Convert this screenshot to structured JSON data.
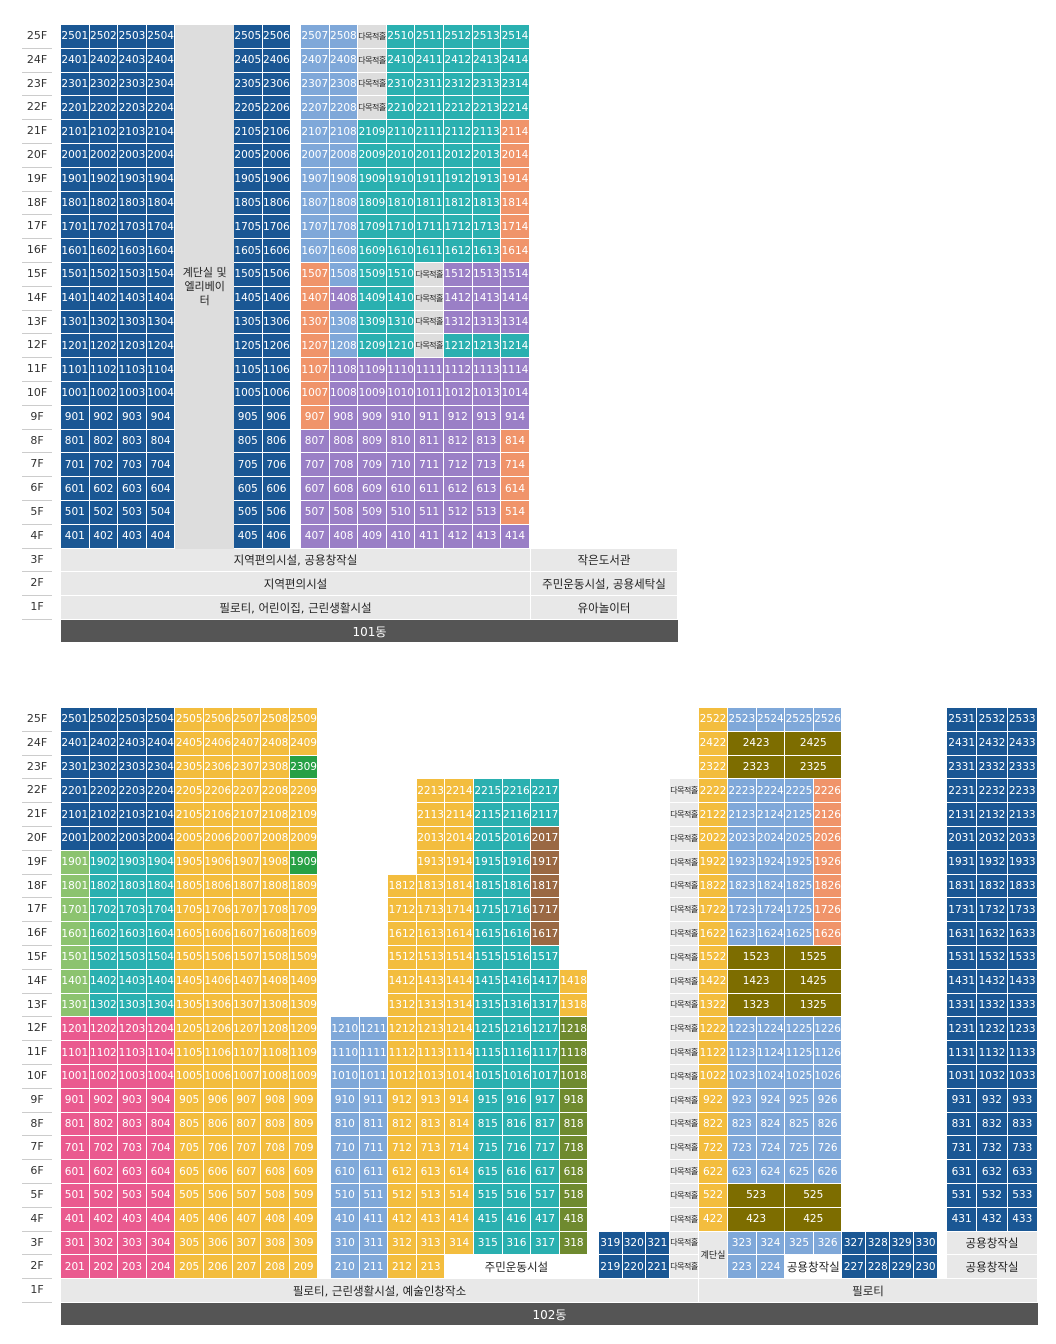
{
  "dong101": {
    "name": "101동",
    "floors": [
      "25F",
      "24F",
      "23F",
      "22F",
      "21F",
      "20F",
      "19F",
      "18F",
      "17F",
      "16F",
      "15F",
      "14F",
      "13F",
      "12F",
      "11F",
      "10F",
      "9F",
      "8F",
      "7F",
      "6F",
      "5F",
      "4F",
      "3F",
      "2F",
      "1F"
    ],
    "core_label": "계단실 및 엘리베이터",
    "dm_label": "다목적홀",
    "facilities": [
      {
        "floor": "3F",
        "left": "지역편의시설, 공용창작실",
        "right": "작은도서관"
      },
      {
        "floor": "2F",
        "left": "지역편의시설",
        "right": "주민운동시설, 공용세탁실"
      },
      {
        "floor": "1F",
        "left": "필로티, 어린이집, 근린생활시설",
        "right": "유아놀이터"
      }
    ]
  },
  "dong102": {
    "name": "102동",
    "floors": [
      "25F",
      "24F",
      "23F",
      "22F",
      "21F",
      "20F",
      "19F",
      "18F",
      "17F",
      "16F",
      "15F",
      "14F",
      "13F",
      "12F",
      "11F",
      "10F",
      "9F",
      "8F",
      "7F",
      "6F",
      "5F",
      "4F",
      "3F",
      "2F",
      "1F"
    ],
    "dm_label": "다목적홀",
    "stair_label": "계단실",
    "labels": {
      "community": "주민운동시설",
      "creative": "공용창작실",
      "ground_left": "필로티, 근린생활시설, 예술인창작소",
      "ground_right": "필로티"
    }
  },
  "colors": {
    "navy": "#1a5794",
    "lightblue": "#7fa8d9",
    "teal": "#2ab0b0",
    "orange": "#f0946a",
    "purple": "#9a7fc6",
    "pink": "#ea5a8f",
    "yellow": "#f3bd3e",
    "green_light": "#8cc36f",
    "green": "#27a045",
    "olive": "#7d6d00",
    "brown": "#9a6843",
    "olive_green": "#6f8a2f",
    "core_gray": "#dddddd"
  }
}
